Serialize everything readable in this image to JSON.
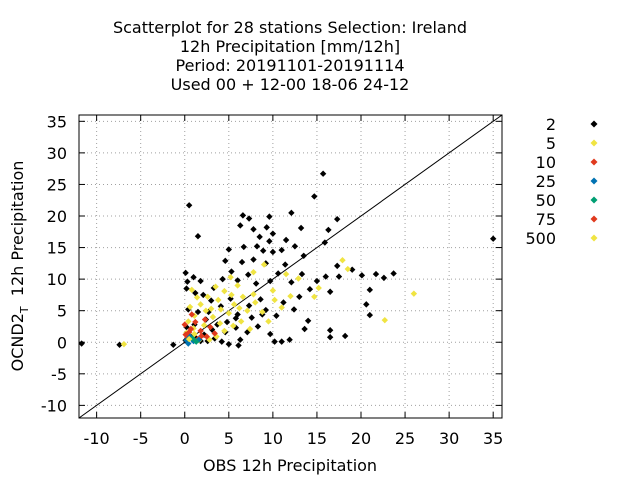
{
  "chart_data": {
    "type": "scatter",
    "title_lines": [
      "Scatterplot for   28 stations Selection: Ireland",
      "12h Precipitation [mm/12h]",
      "Period: 20191101-20191114",
      "Used  00 + 12-00 18-06 24-12"
    ],
    "xlabel": "OBS 12h Precipitation",
    "ylabel_main": "OCND2",
    "ylabel_sub": "T",
    "ylabel_rest": "  12h Precipitation",
    "xlim": [
      -12,
      36
    ],
    "ylim": [
      -12,
      36
    ],
    "xticks": [
      -10,
      -5,
      0,
      5,
      10,
      15,
      20,
      25,
      30,
      35
    ],
    "yticks": [
      -10,
      -5,
      0,
      5,
      10,
      15,
      20,
      25,
      30,
      35
    ],
    "grid": true,
    "diagonal": [
      [
        -12,
        -12
      ],
      [
        36,
        36
      ]
    ],
    "legend_position": "right",
    "series": [
      {
        "name": "2",
        "color": "#000000",
        "points": [
          [
            -11.7,
            -0.2
          ],
          [
            -7.4,
            -0.4
          ],
          [
            -1.3,
            -0.4
          ],
          [
            0.5,
            21.7
          ],
          [
            1.5,
            16.8
          ],
          [
            15.7,
            26.7
          ],
          [
            17.3,
            19.5
          ],
          [
            14.7,
            23.1
          ],
          [
            35.0,
            16.4
          ],
          [
            6.6,
            20.1
          ],
          [
            7.3,
            19.6
          ],
          [
            9.6,
            19.9
          ],
          [
            12.1,
            20.5
          ],
          [
            6.3,
            18.5
          ],
          [
            7.8,
            17.9
          ],
          [
            9.3,
            18.2
          ],
          [
            13.2,
            18.1
          ],
          [
            8.5,
            16.7
          ],
          [
            9.6,
            16.0
          ],
          [
            10.0,
            17.2
          ],
          [
            11.5,
            16.2
          ],
          [
            16.3,
            17.8
          ],
          [
            5.0,
            14.7
          ],
          [
            6.7,
            15.1
          ],
          [
            8.2,
            15.2
          ],
          [
            8.9,
            14.5
          ],
          [
            10.0,
            14.3
          ],
          [
            11.0,
            14.6
          ],
          [
            12.5,
            15.2
          ],
          [
            4.6,
            12.9
          ],
          [
            6.5,
            12.7
          ],
          [
            7.8,
            13.1
          ],
          [
            9.2,
            12.5
          ],
          [
            11.4,
            12.3
          ],
          [
            13.5,
            13.7
          ],
          [
            15.9,
            15.8
          ],
          [
            17.3,
            12.1
          ],
          [
            19.0,
            11.5
          ],
          [
            20.1,
            10.6
          ],
          [
            21.7,
            10.8
          ],
          [
            22.6,
            10.2
          ],
          [
            23.7,
            10.9
          ],
          [
            16.5,
            8.0
          ],
          [
            17.5,
            10.4
          ],
          [
            21.0,
            8.3
          ],
          [
            20.6,
            6.0
          ],
          [
            21.0,
            4.3
          ],
          [
            0.1,
            11.0
          ],
          [
            0.3,
            9.6
          ],
          [
            1.0,
            10.3
          ],
          [
            1.8,
            9.7
          ],
          [
            0.2,
            8.5
          ],
          [
            1.2,
            7.8
          ],
          [
            2.1,
            7.5
          ],
          [
            3.3,
            8.6
          ],
          [
            4.3,
            10.0
          ],
          [
            5.3,
            11.2
          ],
          [
            6.0,
            9.8
          ],
          [
            7.2,
            10.7
          ],
          [
            8.1,
            9.3
          ],
          [
            9.7,
            9.7
          ],
          [
            10.6,
            10.9
          ],
          [
            12.1,
            9.5
          ],
          [
            13.3,
            10.8
          ],
          [
            14.2,
            8.4
          ],
          [
            15.0,
            9.7
          ],
          [
            16.0,
            10.4
          ],
          [
            3.0,
            6.6
          ],
          [
            4.1,
            5.7
          ],
          [
            5.2,
            6.9
          ],
          [
            6.0,
            4.4
          ],
          [
            7.3,
            5.8
          ],
          [
            8.6,
            6.8
          ],
          [
            9.2,
            5.1
          ],
          [
            10.4,
            4.2
          ],
          [
            11.2,
            6.3
          ],
          [
            12.4,
            5.2
          ],
          [
            13.0,
            7.2
          ],
          [
            0.4,
            5.2
          ],
          [
            1.5,
            4.8
          ],
          [
            2.4,
            3.6
          ],
          [
            3.7,
            2.8
          ],
          [
            4.6,
            1.6
          ],
          [
            5.8,
            2.3
          ],
          [
            6.3,
            0.4
          ],
          [
            7.1,
            1.6
          ],
          [
            8.3,
            2.5
          ],
          [
            9.7,
            1.3
          ],
          [
            10.2,
            0.1
          ],
          [
            11.0,
            0.1
          ],
          [
            11.9,
            0.4
          ],
          [
            13.6,
            2.1
          ],
          [
            14.0,
            3.4
          ],
          [
            16.5,
            1.9
          ],
          [
            16.5,
            0.8
          ],
          [
            18.2,
            1.0
          ],
          [
            0.1,
            0.3
          ],
          [
            0.8,
            0.9
          ],
          [
            1.3,
            0.6
          ],
          [
            1.8,
            0.2
          ],
          [
            2.6,
            0.2
          ],
          [
            3.4,
            0.6
          ],
          [
            4.2,
            0.1
          ],
          [
            5.0,
            -0.3
          ],
          [
            6.1,
            -0.5
          ],
          [
            5.8,
            3.8
          ],
          [
            7.6,
            3.9
          ],
          [
            8.8,
            4.4
          ],
          [
            0.2,
            2.4
          ],
          [
            1.1,
            2.8
          ],
          [
            2.2,
            1.2
          ],
          [
            3.1,
            2.0
          ],
          [
            4.8,
            3.2
          ],
          [
            2.7,
            4.8
          ]
        ]
      },
      {
        "name": "5",
        "color": "#f0e442",
        "points": [
          [
            -6.9,
            -0.3
          ],
          [
            26.0,
            7.7
          ],
          [
            22.7,
            3.5
          ],
          [
            17.9,
            13.0
          ],
          [
            18.5,
            11.6
          ],
          [
            15.2,
            8.6
          ],
          [
            14.7,
            7.2
          ],
          [
            12.9,
            10.1
          ],
          [
            11.5,
            10.8
          ],
          [
            10.0,
            8.2
          ],
          [
            9.0,
            12.3
          ],
          [
            7.8,
            11.1
          ],
          [
            6.0,
            9.0
          ],
          [
            5.3,
            7.5
          ],
          [
            4.5,
            8.1
          ],
          [
            3.8,
            6.7
          ],
          [
            3.0,
            5.3
          ],
          [
            2.6,
            7.2
          ],
          [
            1.8,
            6.0
          ],
          [
            1.1,
            4.2
          ],
          [
            0.6,
            5.6
          ],
          [
            0.4,
            3.3
          ],
          [
            1.0,
            2.2
          ],
          [
            2.2,
            2.7
          ],
          [
            3.2,
            4.0
          ],
          [
            4.0,
            3.0
          ],
          [
            5.0,
            4.6
          ],
          [
            5.6,
            6.0
          ],
          [
            6.6,
            7.2
          ],
          [
            7.1,
            5.0
          ],
          [
            8.0,
            6.3
          ],
          [
            8.8,
            4.8
          ],
          [
            9.5,
            3.3
          ],
          [
            10.2,
            6.7
          ],
          [
            11.0,
            5.5
          ],
          [
            12.0,
            7.3
          ],
          [
            4.5,
            1.8
          ],
          [
            5.5,
            2.6
          ],
          [
            6.4,
            3.3
          ],
          [
            7.4,
            2.1
          ],
          [
            3.6,
            0.9
          ],
          [
            2.8,
            0.4
          ],
          [
            1.6,
            0.3
          ],
          [
            0.2,
            1.5
          ],
          [
            4.1,
            5.2
          ],
          [
            6.2,
            5.4
          ],
          [
            7.8,
            7.6
          ],
          [
            2.4,
            5.0
          ],
          [
            1.4,
            7.1
          ],
          [
            0.8,
            8.3
          ],
          [
            3.5,
            8.8
          ],
          [
            5.2,
            10.3
          ]
        ]
      },
      {
        "name": "10",
        "color": "#e03a1e",
        "points": [
          [
            0.0,
            2.8
          ],
          [
            0.5,
            1.6
          ],
          [
            1.2,
            3.2
          ],
          [
            1.8,
            1.8
          ],
          [
            2.3,
            3.6
          ],
          [
            2.9,
            2.4
          ],
          [
            0.3,
            0.8
          ],
          [
            1.5,
            0.5
          ],
          [
            3.4,
            1.4
          ],
          [
            0.8,
            4.4
          ]
        ]
      },
      {
        "name": "25",
        "color": "#0072b2",
        "points": [
          [
            0.2,
            0.3
          ],
          [
            0.6,
            0.9
          ],
          [
            1.0,
            0.2
          ],
          [
            1.6,
            0.4
          ],
          [
            0.4,
            -0.2
          ]
        ]
      },
      {
        "name": "50",
        "color": "#009e73",
        "points": [
          [
            0.9,
            0.6
          ],
          [
            1.3,
            0.1
          ]
        ]
      },
      {
        "name": "75",
        "color": "#e03a1e",
        "points": [
          [
            0.1,
            1.2
          ],
          [
            0.7,
            2.1
          ],
          [
            1.9,
            1.0
          ],
          [
            2.5,
            0.9
          ]
        ]
      },
      {
        "name": "500",
        "color": "#f0e442",
        "points": [
          [
            0.5,
            0.5
          ],
          [
            1.1,
            1.3
          ]
        ]
      }
    ]
  }
}
